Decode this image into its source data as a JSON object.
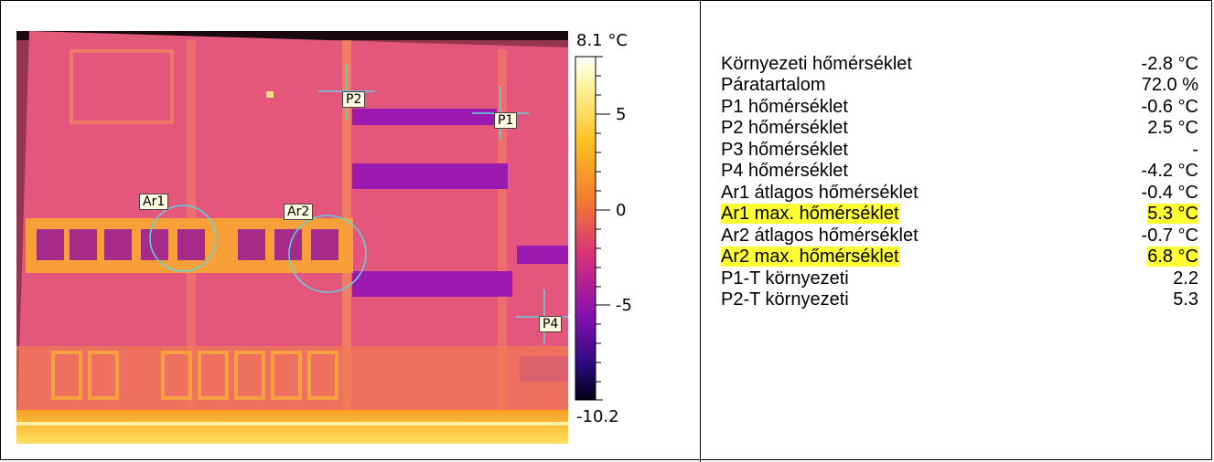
{
  "scale": {
    "max_label": "8.1 °C",
    "min_label": "-10.2",
    "ticks": [
      "5",
      "0",
      "-5"
    ]
  },
  "markers": {
    "p1": "P1",
    "p2": "P2",
    "p4": "P4",
    "ar1": "Ar1",
    "ar2": "Ar2"
  },
  "measurements": [
    {
      "label": "Környezeti hőmérséklet",
      "value": "-2.8 °C",
      "highlight": false
    },
    {
      "label": "Páratartalom",
      "value": "72.0 %",
      "highlight": false
    },
    {
      "label": "P1 hőmérséklet",
      "value": "-0.6 °C",
      "highlight": false
    },
    {
      "label": "P2 hőmérséklet",
      "value": "2.5 °C",
      "highlight": false
    },
    {
      "label": "P3 hőmérséklet",
      "value": "-",
      "highlight": false
    },
    {
      "label": "P4 hőmérséklet",
      "value": "-4.2 °C",
      "highlight": false
    },
    {
      "label": "Ar1 átlagos hőmérséklet",
      "value": "-0.4 °C",
      "highlight": false
    },
    {
      "label": "Ar1 max. hőmérséklet",
      "value": "5.3 °C",
      "highlight": true
    },
    {
      "label": "Ar2 átlagos hőmérséklet",
      "value": "-0.7 °C",
      "highlight": false
    },
    {
      "label": "Ar2 max. hőmérséklet",
      "value": "6.8 °C",
      "highlight": true
    },
    {
      "label": "P1-T környezeti",
      "value": "2.2",
      "highlight": false
    },
    {
      "label": "P2-T környezeti",
      "value": "5.3",
      "highlight": false
    }
  ],
  "colors": {
    "highlight": "#ffff33",
    "marker_line": "#5fd3e0",
    "facade": "#e5507a"
  }
}
